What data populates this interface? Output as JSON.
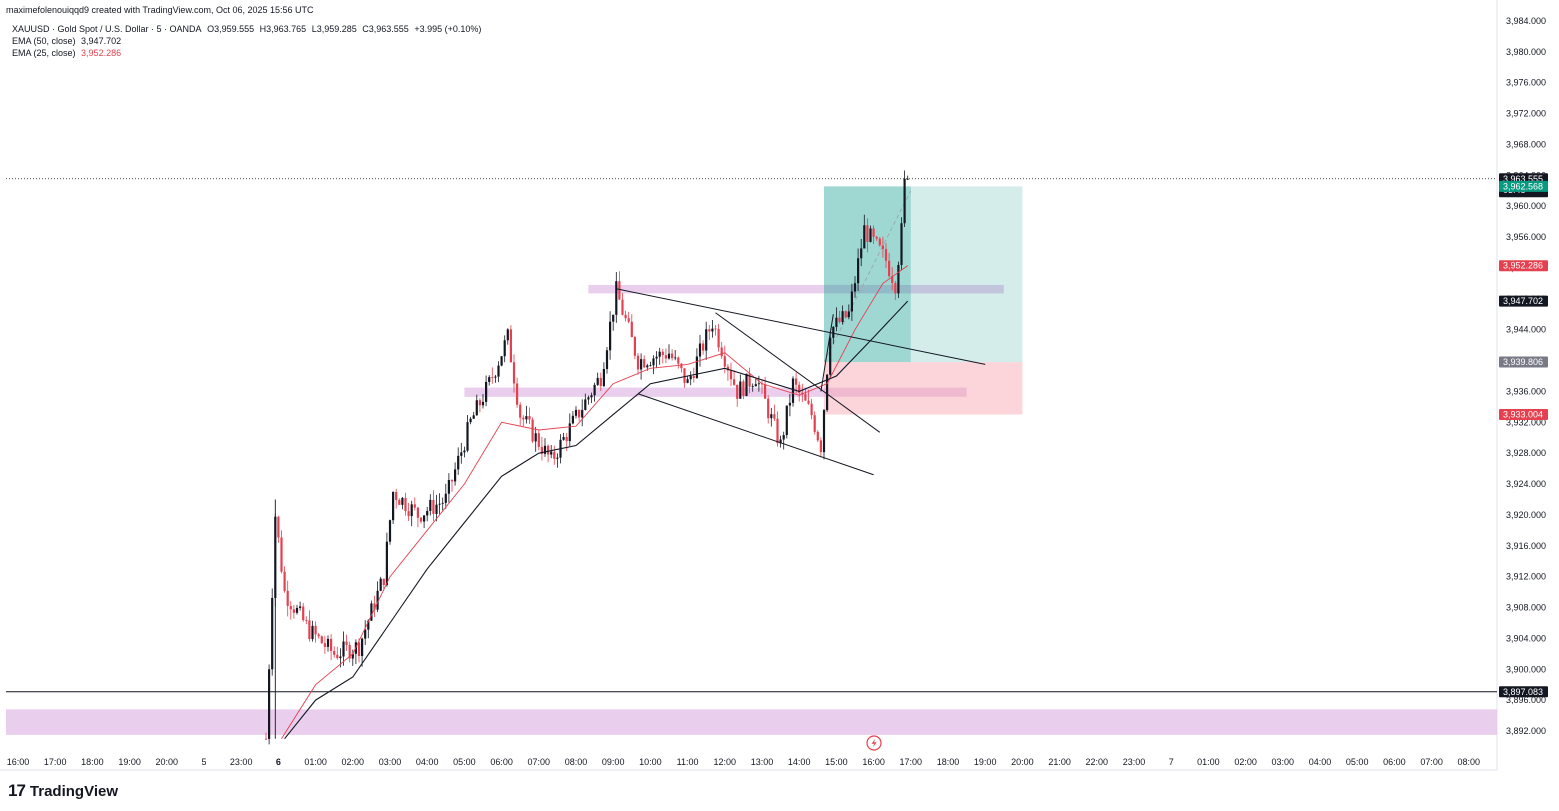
{
  "credit": "maximefolenouiqqd9 created with TradingView.com, Oct 06, 2025 15:56 UTC",
  "legend": {
    "symbol": "XAUUSD · Gold Spot / U.S. Dollar · 5 · OANDA",
    "open": "O3,959.555",
    "high": "H3,963.765",
    "low": "L3,959.285",
    "close": "C3,963.555",
    "change": "+3.995 (+0.10%)",
    "ema50_label": "EMA (50, close)",
    "ema50_value": "3,947.702",
    "ema25_label": "EMA (25, close)",
    "ema25_value": "3,952.286"
  },
  "logo_text": "TradingView",
  "logo_mark": "17",
  "colors": {
    "up": "#131722",
    "down": "#e5404f",
    "ema25": "#e5404f",
    "ema50": "#131722",
    "zone": "#e1bee7",
    "profit": "#26a69a",
    "loss": "#f7a1ad",
    "tag_current": "#131722",
    "tag_target": "#089981",
    "tag_ema25": "#e5404f",
    "tag_entry": "#787b86",
    "tag_stop": "#e5404f"
  },
  "price_tags": {
    "current": "3,963.555",
    "countdown": "03:48",
    "target": "3,962.568",
    "ema25": "3,952.286",
    "ema50": "3,947.702",
    "entry": "3,939.806",
    "stop": "3,933.004",
    "hline": "3,897.083"
  },
  "chart_data": {
    "type": "candlestick",
    "symbol": "XAUUSD",
    "interval": "5",
    "y_axis": {
      "ticks": [
        3892,
        3896,
        3900,
        3904,
        3908,
        3912,
        3916,
        3920,
        3924,
        3928,
        3932,
        3936,
        3940,
        3944,
        3948,
        3952,
        3956,
        3960,
        3964,
        3968,
        3972,
        3976,
        3980,
        3984
      ],
      "tick_labels": [
        "3,892.000",
        "3,896.000",
        "3,900.000",
        "3,904.000",
        "3,908.000",
        "3,912.000",
        "3,916.000",
        "3,920.000",
        "3,924.000",
        "3,928.000",
        "3,932.000",
        "3,936.000",
        "3,940.000",
        "3,944.000",
        "3,948.000",
        "3,952.000",
        "3,956.000",
        "3,960.000",
        "3,964.000",
        "3,968.000",
        "3,972.000",
        "3,976.000",
        "3,980.000",
        "3,984.000"
      ],
      "range": [
        3890.5,
        3985.5
      ]
    },
    "x_axis": {
      "tick_labels": [
        "16:00",
        "17:00",
        "18:00",
        "19:00",
        "20:00",
        "5",
        "23:00",
        "6",
        "01:00",
        "02:00",
        "03:00",
        "04:00",
        "05:00",
        "06:00",
        "07:00",
        "08:00",
        "09:00",
        "10:00",
        "11:00",
        "12:00",
        "13:00",
        "14:00",
        "15:00",
        "16:00",
        "17:00",
        "18:00",
        "19:00",
        "20:00",
        "21:00",
        "22:00",
        "23:00",
        "7",
        "01:00",
        "02:00",
        "03:00",
        "04:00",
        "05:00",
        "06:00",
        "07:00",
        "08:00"
      ],
      "bold_labels": [
        "6"
      ]
    },
    "price_path": [
      {
        "t": "22:40",
        "p": 3891.0
      },
      {
        "t": "22:55",
        "p": 3920.0
      },
      {
        "t": "23:10",
        "p": 3910.0
      },
      {
        "t": "23:50",
        "p": 3905.0
      },
      {
        "t": "00:30",
        "p": 3902.0
      },
      {
        "t": "01:10",
        "p": 3903.0
      },
      {
        "t": "01:50",
        "p": 3912.0
      },
      {
        "t": "02:05",
        "p": 3923.0
      },
      {
        "t": "02:45",
        "p": 3920.0
      },
      {
        "t": "03:30",
        "p": 3922.0
      },
      {
        "t": "04:10",
        "p": 3932.0
      },
      {
        "t": "04:40",
        "p": 3937.0
      },
      {
        "t": "05:10",
        "p": 3943.0
      },
      {
        "t": "05:30",
        "p": 3933.0
      },
      {
        "t": "06:20",
        "p": 3927.0
      },
      {
        "t": "07:10",
        "p": 3934.0
      },
      {
        "t": "07:40",
        "p": 3938.0
      },
      {
        "t": "08:05",
        "p": 3949.0
      },
      {
        "t": "08:40",
        "p": 3940.0
      },
      {
        "t": "09:30",
        "p": 3941.0
      },
      {
        "t": "10:00",
        "p": 3937.0
      },
      {
        "t": "10:40",
        "p": 3945.0
      },
      {
        "t": "11:20",
        "p": 3936.0
      },
      {
        "t": "11:50",
        "p": 3938.0
      },
      {
        "t": "12:30",
        "p": 3929.0
      },
      {
        "t": "12:50",
        "p": 3937.0
      },
      {
        "t": "13:20",
        "p": 3933.0
      },
      {
        "t": "13:35",
        "p": 3929.0
      },
      {
        "t": "13:50",
        "p": 3944.0
      },
      {
        "t": "14:20",
        "p": 3946.0
      },
      {
        "t": "14:45",
        "p": 3957.0
      },
      {
        "t": "15:20",
        "p": 3953.0
      },
      {
        "t": "15:35",
        "p": 3950.0
      },
      {
        "t": "15:55",
        "p": 3963.5
      }
    ],
    "ema25_path": [
      {
        "t": "23:05",
        "p": 3891.0
      },
      {
        "t": "00:00",
        "p": 3898.0
      },
      {
        "t": "01:00",
        "p": 3902.0
      },
      {
        "t": "02:00",
        "p": 3912.0
      },
      {
        "t": "03:00",
        "p": 3918.0
      },
      {
        "t": "04:00",
        "p": 3924.0
      },
      {
        "t": "05:00",
        "p": 3932.0
      },
      {
        "t": "06:00",
        "p": 3931.0
      },
      {
        "t": "07:00",
        "p": 3931.5
      },
      {
        "t": "08:00",
        "p": 3937.0
      },
      {
        "t": "09:00",
        "p": 3939.0
      },
      {
        "t": "10:00",
        "p": 3939.5
      },
      {
        "t": "11:00",
        "p": 3941.0
      },
      {
        "t": "12:00",
        "p": 3937.0
      },
      {
        "t": "13:00",
        "p": 3935.5
      },
      {
        "t": "13:45",
        "p": 3937.0
      },
      {
        "t": "14:30",
        "p": 3944.0
      },
      {
        "t": "15:15",
        "p": 3950.0
      },
      {
        "t": "15:55",
        "p": 3952.3
      }
    ],
    "ema50_path": [
      {
        "t": "23:10",
        "p": 3891.0
      },
      {
        "t": "00:00",
        "p": 3896.0
      },
      {
        "t": "01:00",
        "p": 3899.0
      },
      {
        "t": "02:00",
        "p": 3906.0
      },
      {
        "t": "03:00",
        "p": 3913.0
      },
      {
        "t": "04:00",
        "p": 3919.0
      },
      {
        "t": "05:00",
        "p": 3925.0
      },
      {
        "t": "06:00",
        "p": 3928.0
      },
      {
        "t": "07:00",
        "p": 3929.0
      },
      {
        "t": "08:00",
        "p": 3933.0
      },
      {
        "t": "09:00",
        "p": 3937.0
      },
      {
        "t": "10:00",
        "p": 3938.0
      },
      {
        "t": "11:00",
        "p": 3939.0
      },
      {
        "t": "12:00",
        "p": 3937.5
      },
      {
        "t": "13:00",
        "p": 3936.0
      },
      {
        "t": "14:00",
        "p": 3938.0
      },
      {
        "t": "15:00",
        "p": 3943.0
      },
      {
        "t": "15:55",
        "p": 3947.7
      }
    ],
    "zones": [
      {
        "from": "3,891.5",
        "to": "3,894.8",
        "span": "full"
      },
      {
        "from": "3,935.3",
        "to": "3,936.5",
        "span": "04:00-17:30"
      },
      {
        "from": "3,948.7",
        "to": "3,949.8",
        "span": "07:20-18:30"
      }
    ],
    "trendlines": [
      {
        "from": {
          "t": "08:05",
          "p": 3949.3
        },
        "to": {
          "t": "18:00",
          "p": 3939.5
        }
      },
      {
        "from": {
          "t": "08:40",
          "p": 3935.7
        },
        "to": {
          "t": "15:00",
          "p": 3925.2
        }
      },
      {
        "from": {
          "t": "10:45",
          "p": 3946.2
        },
        "to": {
          "t": "15:10",
          "p": 3930.7
        }
      },
      {
        "from": {
          "t": "13:35",
          "p": 3936.0
        },
        "to": {
          "t": "13:55",
          "p": 3946.0
        }
      }
    ],
    "position": {
      "side": "long",
      "entry": 3939.806,
      "target": 3962.568,
      "stop": 3933.004,
      "start": "13:40",
      "end": "19:00"
    },
    "horizontal_line": 3897.083,
    "last_price": 3963.555
  }
}
